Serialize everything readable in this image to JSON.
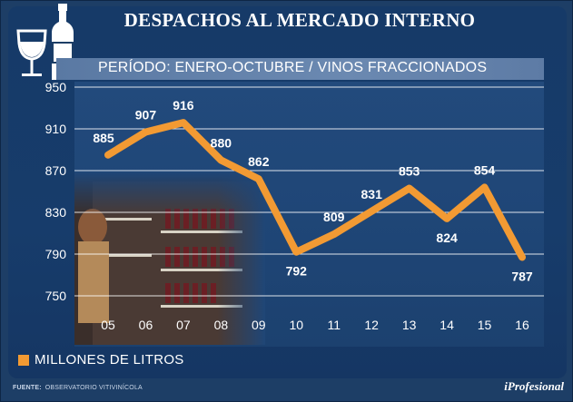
{
  "header": {
    "title": "DESPACHOS AL MERCADO INTERNO",
    "subtitle": "PERÍODO: ENERO-OCTUBRE / VINOS FRACCIONADOS"
  },
  "legend": {
    "label": "MILLONES DE LITROS",
    "color": "#f29a33"
  },
  "footer": {
    "source_label": "FUENTE:",
    "source_text": "OBSERVATORIO VITIVINÍCOLA",
    "brand": "iProfesional"
  },
  "icons": [
    "wine-glass-icon",
    "wine-bottle-icon"
  ],
  "colors": {
    "background": "#1d3e66",
    "line": "#f29a33",
    "grid": "#ffffff"
  },
  "chart_data": {
    "type": "line",
    "title": "DESPACHOS AL MERCADO INTERNO",
    "subtitle": "PERÍODO: ENERO-OCTUBRE / VINOS FRACCIONADOS",
    "categories": [
      "05",
      "06",
      "07",
      "08",
      "09",
      "10",
      "11",
      "12",
      "13",
      "14",
      "15",
      "16"
    ],
    "series": [
      {
        "name": "MILLONES DE LITROS",
        "values": [
          885,
          907,
          916,
          880,
          862,
          792,
          809,
          831,
          853,
          824,
          854,
          787
        ]
      }
    ],
    "ylim": [
      750,
      950
    ],
    "yticks": [
      950,
      910,
      870,
      830,
      790,
      750
    ],
    "grid": true,
    "legend_position": "bottom-left"
  }
}
